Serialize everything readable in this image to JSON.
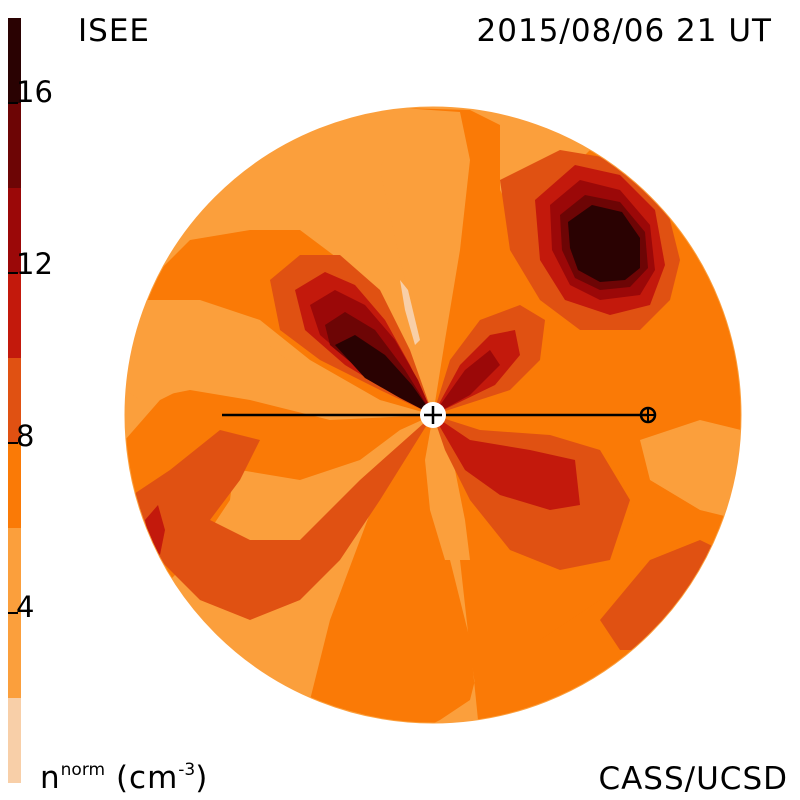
{
  "header": {
    "title_left": "ISEE",
    "title_right": "2015/08/06 21 UT"
  },
  "footer": {
    "credit": "CASS/UCSD",
    "unit_base": "n",
    "unit_sup": "norm",
    "unit_paren_open": " (cm",
    "unit_exp": "-3",
    "unit_paren_close": ")"
  },
  "colorbar": {
    "range": [
      0,
      18
    ],
    "ticks": [
      {
        "value": 16,
        "label": "16"
      },
      {
        "value": 12,
        "label": "12"
      },
      {
        "value": 8,
        "label": "8"
      },
      {
        "value": 4,
        "label": "4"
      }
    ],
    "bands": [
      {
        "from": 0,
        "to": 2,
        "color": "#f8cfa8"
      },
      {
        "from": 2,
        "to": 6,
        "color": "#fb9f3c"
      },
      {
        "from": 6,
        "to": 8,
        "color": "#fa7a06"
      },
      {
        "from": 8,
        "to": 10,
        "color": "#e05112"
      },
      {
        "from": 10,
        "to": 12,
        "color": "#c3190c"
      },
      {
        "from": 12,
        "to": 14,
        "color": "#9b0808"
      },
      {
        "from": 14,
        "to": 16,
        "color": "#6d0505"
      },
      {
        "from": 16,
        "to": 18,
        "color": "#2a0202"
      }
    ]
  },
  "map": {
    "sun_symbol": "sun-marker",
    "earth_symbol": "earth-marker"
  }
}
